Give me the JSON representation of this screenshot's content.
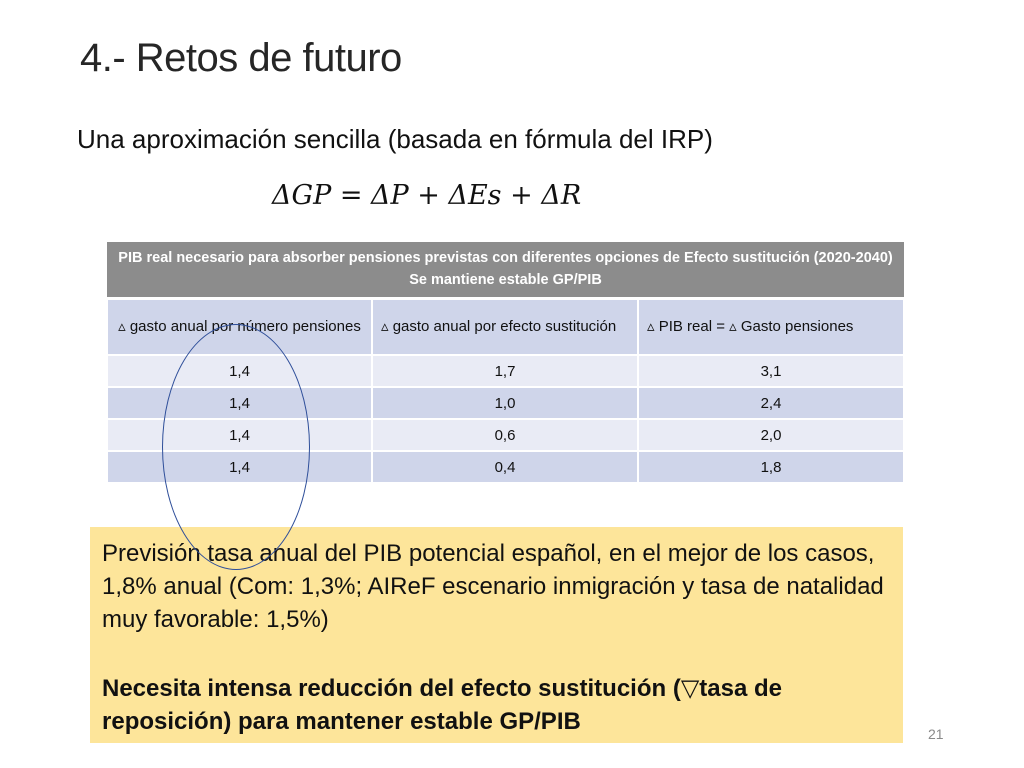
{
  "slide": {
    "title": "4.- Retos de futuro",
    "subtitle": "Una aproximación sencilla (basada en fórmula del IRP)",
    "formula": "ΔGP =  ΔP +  ΔEs + ΔR",
    "page_number": "21"
  },
  "table": {
    "header_line1": "PIB real necesario para absorber pensiones previstas con diferentes opciones de Efecto sustitución (2020-2040)",
    "header_line2": "Se mantiene estable GP/PIB",
    "columns": [
      "▵ gasto anual por número pensiones",
      "▵ gasto anual por efecto sustitución",
      "▵ PIB real = ▵ Gasto pensiones"
    ],
    "rows": [
      [
        "1,4",
        "1,7",
        "3,1"
      ],
      [
        "1,4",
        "1,0",
        "2,4"
      ],
      [
        "1,4",
        "0,6",
        "2,0"
      ],
      [
        "1,4",
        "0,4",
        "1,8"
      ]
    ]
  },
  "note": {
    "paragraph1": "Previsión tasa anual del PIB potencial español, en el mejor de los casos, 1,8% anual (Com: 1,3%; AIReF escenario inmigración y tasa de natalidad muy favorable: 1,5%)",
    "paragraph2": "Necesita intensa reducción del efecto sustitución (▽tasa de reposición) para mantener estable GP/PIB"
  },
  "colors": {
    "table_header_bg": "#8c8c8c",
    "row_dark": "#cfd5ea",
    "row_light": "#e9ebf5",
    "note_bg": "#fde59a",
    "circle_stroke": "#2f4f9a"
  }
}
